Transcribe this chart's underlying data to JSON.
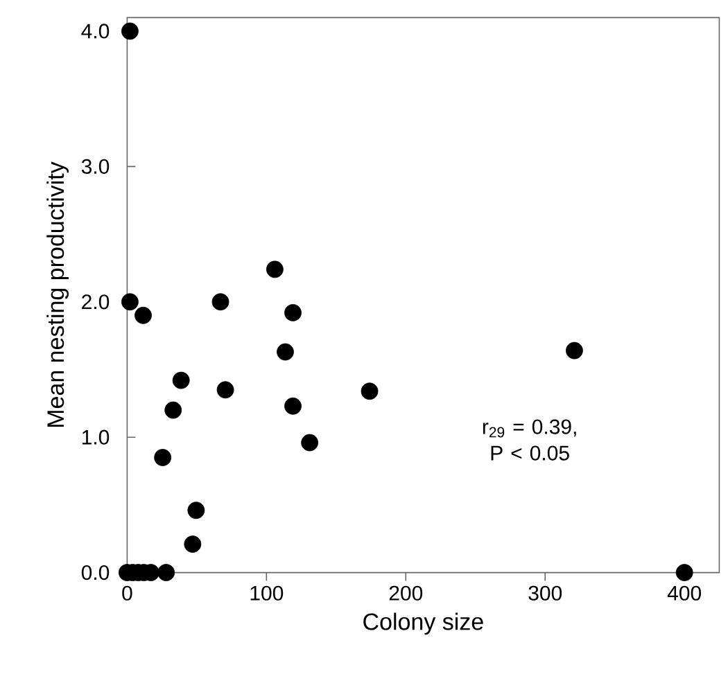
{
  "chart_data": {
    "type": "scatter",
    "xlabel": "Colony size",
    "ylabel": "Mean nesting productivity",
    "x": [
      2,
      2,
      11.5,
      67,
      106,
      119,
      113.5,
      38.7,
      70.5,
      119,
      174,
      131,
      33,
      25.5,
      49.5,
      47,
      321,
      400,
      0,
      4,
      8,
      12,
      17,
      28
    ],
    "values": [
      4.0,
      2.0,
      1.9,
      2.0,
      2.24,
      1.92,
      1.63,
      1.42,
      1.35,
      1.23,
      1.34,
      0.96,
      1.2,
      0.85,
      0.46,
      0.21,
      1.64,
      0,
      0,
      0,
      0,
      0,
      0,
      0
    ],
    "color": "#000000",
    "marker": "circle",
    "xlim": [
      0,
      425
    ],
    "ylim": [
      0,
      4.1
    ],
    "xticks": [
      0,
      100,
      200,
      300,
      400
    ],
    "yticks": [
      {
        "value": 0,
        "label": "0.0"
      },
      {
        "value": 1,
        "label": "1.0"
      },
      {
        "value": 2,
        "label": "2.0"
      },
      {
        "value": 3,
        "label": "3.0"
      },
      {
        "value": 4,
        "label": "4.0"
      }
    ],
    "annotations": [
      {
        "text": "r$_{29}$ = 0.39, P < 0.05"
      }
    ],
    "grid": false,
    "legend": false
  }
}
